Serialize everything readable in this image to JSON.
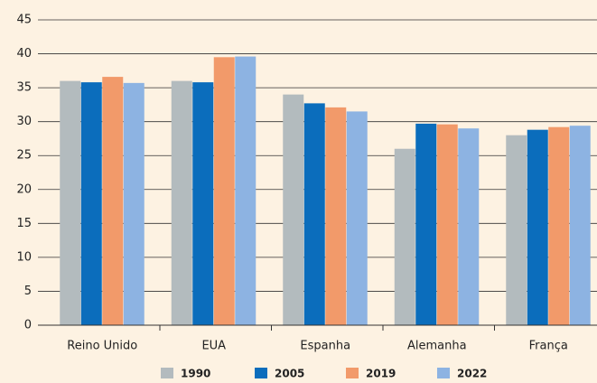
{
  "chart_data": {
    "type": "bar",
    "categories": [
      "Reino Unido",
      "EUA",
      "Espanha",
      "Alemanha",
      "França"
    ],
    "series": [
      {
        "name": "1990",
        "color": "#b3bbbe",
        "values": [
          36,
          36,
          34,
          26,
          28
        ]
      },
      {
        "name": "2005",
        "color": "#0b6dbc",
        "values": [
          35.8,
          35.8,
          32.7,
          29.7,
          28.8
        ]
      },
      {
        "name": "2019",
        "color": "#f29a6a",
        "values": [
          36.6,
          39.5,
          32.1,
          29.6,
          29.2
        ]
      },
      {
        "name": "2022",
        "color": "#8db3e2",
        "values": [
          35.7,
          39.6,
          31.5,
          29,
          29.4
        ]
      }
    ],
    "ylim": [
      0,
      45
    ],
    "yticks": [
      0,
      5,
      10,
      15,
      20,
      25,
      30,
      35,
      40,
      45
    ],
    "grid": true
  }
}
